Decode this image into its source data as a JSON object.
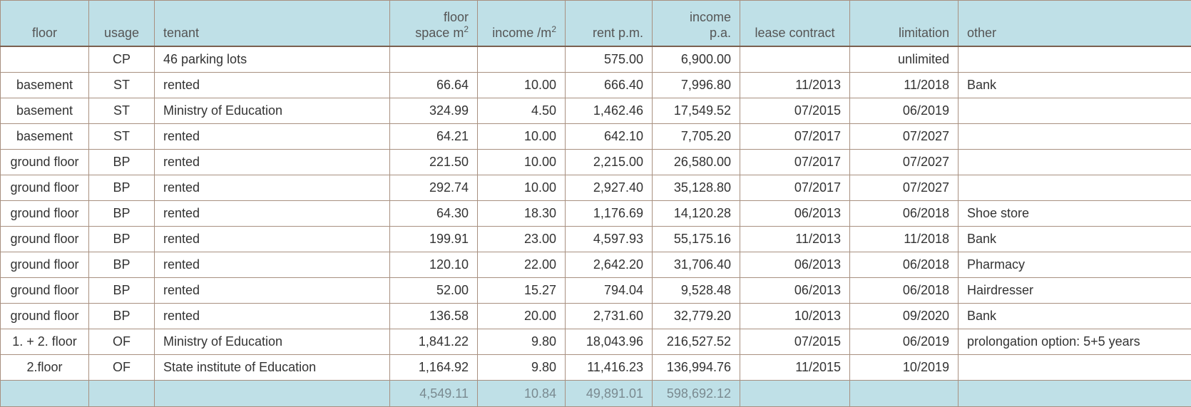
{
  "headers": {
    "floor": "floor",
    "usage": "usage",
    "tenant": "tenant",
    "floor_space_line1": "floor",
    "floor_space_line2": "space m",
    "floor_space_sup": "2",
    "income_per_m2": "income /m",
    "income_per_m2_sup": "2",
    "rent_pm": "rent p.m.",
    "income_pa_line1": "income",
    "income_pa_line2": "p.a.",
    "lease_contract": "lease contract",
    "limitation": "limitation",
    "other": "other"
  },
  "rows": [
    {
      "floor": "",
      "usage": "CP",
      "tenant": "46 parking lots",
      "space": "",
      "income_m2": "",
      "rent_pm": "575.00",
      "income_pa": "6,900.00",
      "lease": "",
      "limitation": "unlimited",
      "other": ""
    },
    {
      "floor": "basement",
      "usage": "ST",
      "tenant": "rented",
      "space": "66.64",
      "income_m2": "10.00",
      "rent_pm": "666.40",
      "income_pa": "7,996.80",
      "lease": "11/2013",
      "limitation": "11/2018",
      "other": "Bank"
    },
    {
      "floor": "basement",
      "usage": "ST",
      "tenant": "Ministry of Education",
      "space": "324.99",
      "income_m2": "4.50",
      "rent_pm": "1,462.46",
      "income_pa": "17,549.52",
      "lease": "07/2015",
      "limitation": "06/2019",
      "other": ""
    },
    {
      "floor": "basement",
      "usage": "ST",
      "tenant": "rented",
      "space": "64.21",
      "income_m2": "10.00",
      "rent_pm": "642.10",
      "income_pa": "7,705.20",
      "lease": "07/2017",
      "limitation": "07/2027",
      "other": ""
    },
    {
      "floor": "ground floor",
      "usage": "BP",
      "tenant": "rented",
      "space": "221.50",
      "income_m2": "10.00",
      "rent_pm": "2,215.00",
      "income_pa": "26,580.00",
      "lease": "07/2017",
      "limitation": "07/2027",
      "other": ""
    },
    {
      "floor": "ground floor",
      "usage": "BP",
      "tenant": "rented",
      "space": "292.74",
      "income_m2": "10.00",
      "rent_pm": "2,927.40",
      "income_pa": "35,128.80",
      "lease": "07/2017",
      "limitation": "07/2027",
      "other": ""
    },
    {
      "floor": "ground floor",
      "usage": "BP",
      "tenant": "rented",
      "space": "64.30",
      "income_m2": "18.30",
      "rent_pm": "1,176.69",
      "income_pa": "14,120.28",
      "lease": "06/2013",
      "limitation": "06/2018",
      "other": "Shoe store"
    },
    {
      "floor": "ground floor",
      "usage": "BP",
      "tenant": "rented",
      "space": "199.91",
      "income_m2": "23.00",
      "rent_pm": "4,597.93",
      "income_pa": "55,175.16",
      "lease": "11/2013",
      "limitation": "11/2018",
      "other": "Bank"
    },
    {
      "floor": "ground floor",
      "usage": "BP",
      "tenant": "rented",
      "space": "120.10",
      "income_m2": "22.00",
      "rent_pm": "2,642.20",
      "income_pa": "31,706.40",
      "lease": "06/2013",
      "limitation": "06/2018",
      "other": "Pharmacy"
    },
    {
      "floor": "ground floor",
      "usage": "BP",
      "tenant": "rented",
      "space": "52.00",
      "income_m2": "15.27",
      "rent_pm": "794.04",
      "income_pa": "9,528.48",
      "lease": "06/2013",
      "limitation": "06/2018",
      "other": "Hairdresser"
    },
    {
      "floor": "ground floor",
      "usage": "BP",
      "tenant": "rented",
      "space": "136.58",
      "income_m2": "20.00",
      "rent_pm": "2,731.60",
      "income_pa": "32,779.20",
      "lease": "10/2013",
      "limitation": "09/2020",
      "other": "Bank"
    },
    {
      "floor": "1. + 2. floor",
      "usage": "OF",
      "tenant": "Ministry of Education",
      "space": "1,841.22",
      "income_m2": "9.80",
      "rent_pm": "18,043.96",
      "income_pa": "216,527.52",
      "lease": "07/2015",
      "limitation": "06/2019",
      "other": "prolongation option: 5+5 years"
    },
    {
      "floor": "2.floor",
      "usage": "OF",
      "tenant": "State institute of Education",
      "space": "1,164.92",
      "income_m2": "9.80",
      "rent_pm": "11,416.23",
      "income_pa": "136,994.76",
      "lease": "11/2015",
      "limitation": "10/2019",
      "other": ""
    }
  ],
  "totals": {
    "space": "4,549.11",
    "income_m2": "10.84",
    "rent_pm": "49,891.01",
    "income_pa": "598,692.12"
  },
  "colors": {
    "header_bg": "#bfe0e7",
    "grid": "#a89080",
    "header_rule": "#7a6050"
  }
}
